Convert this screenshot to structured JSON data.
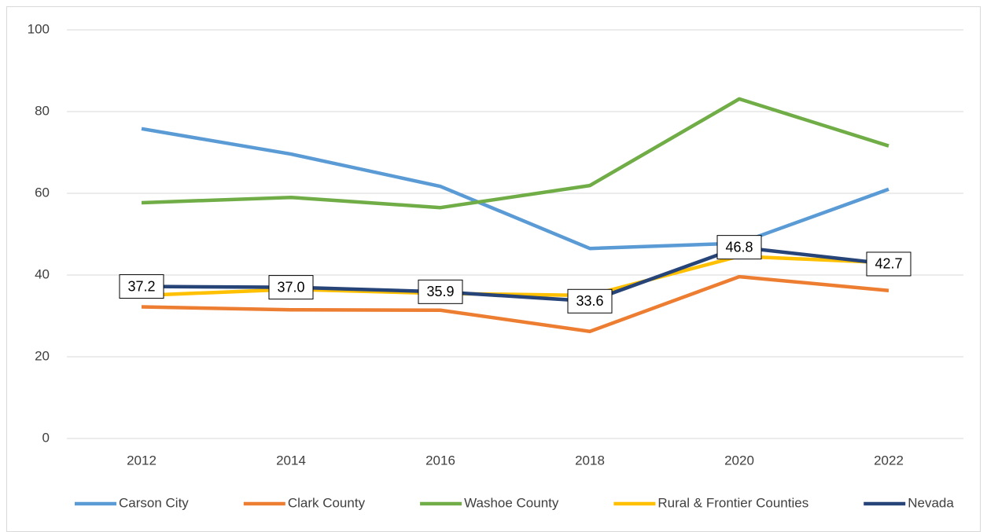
{
  "chart_data": {
    "type": "line",
    "categories": [
      "2012",
      "2014",
      "2016",
      "2018",
      "2020",
      "2022"
    ],
    "series": [
      {
        "name": "Carson City",
        "color": "#5b9bd5",
        "values": [
          75.8,
          69.6,
          61.7,
          46.5,
          47.8,
          61.0
        ]
      },
      {
        "name": "Clark County",
        "color": "#ed7d31",
        "values": [
          32.2,
          31.5,
          31.4,
          26.2,
          39.6,
          36.2
        ]
      },
      {
        "name": "Washoe County",
        "color": "#70ad47",
        "values": [
          57.7,
          59.0,
          56.5,
          61.9,
          83.1,
          71.6
        ]
      },
      {
        "name": "Rural & Frontier Counties",
        "color": "#ffc000",
        "values": [
          35.0,
          36.5,
          35.5,
          35.0,
          44.6,
          43.0
        ]
      },
      {
        "name": "Nevada",
        "color": "#264478",
        "values": [
          37.2,
          37.0,
          35.9,
          33.6,
          46.8,
          42.7
        ],
        "value_labels": [
          "37.2",
          "37.0",
          "35.9",
          "33.6",
          "46.8",
          "42.7"
        ]
      }
    ],
    "ylim": [
      0,
      100
    ],
    "yticks": [
      0,
      20,
      40,
      60,
      80,
      100
    ],
    "grid": true,
    "legend": "bottom"
  }
}
